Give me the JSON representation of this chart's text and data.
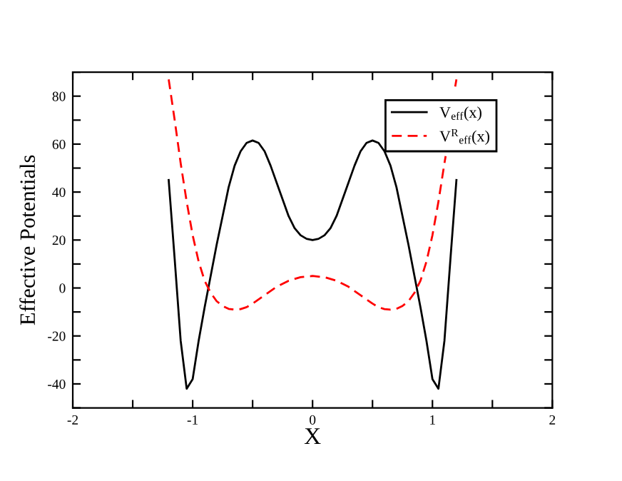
{
  "chart_data": {
    "type": "line",
    "xlabel": "X",
    "ylabel": "Effective Potentials",
    "xlim": [
      -2,
      2
    ],
    "ylim": [
      -50,
      90
    ],
    "xticks": [
      -2,
      {
        "value": -1.5,
        "label": null
      },
      -1,
      {
        "value": -0.5,
        "label": null
      },
      0,
      {
        "value": 0.5,
        "label": null
      },
      1,
      {
        "value": 1.5,
        "label": null
      },
      2
    ],
    "yticks": [
      {
        "value": -50,
        "label": null
      },
      -40,
      {
        "value": -30,
        "label": null
      },
      -20,
      {
        "value": -10,
        "label": null
      },
      0,
      {
        "value": 10,
        "label": null
      },
      20,
      {
        "value": 30,
        "label": null
      },
      40,
      {
        "value": 50,
        "label": null
      },
      60,
      {
        "value": 70,
        "label": null
      },
      80,
      {
        "value": 90,
        "label": null
      }
    ],
    "grid": false,
    "legend": "top right",
    "marker": "none",
    "series": [
      {
        "name": "V$_{eff}$(x)",
        "color": "#000000",
        "line_style": "solid",
        "x": [
          -1.2,
          -1.15,
          -1.1,
          -1.05,
          -1.0,
          -0.95,
          -0.9,
          -0.85,
          -0.8,
          -0.75,
          -0.7,
          -0.65,
          -0.6,
          -0.55,
          -0.5,
          -0.45,
          -0.4,
          -0.35,
          -0.3,
          -0.25,
          -0.2,
          -0.15,
          -0.1,
          -0.05,
          0,
          0.05,
          0.1,
          0.15,
          0.2,
          0.25,
          0.3,
          0.35,
          0.4,
          0.45,
          0.5,
          0.55,
          0.6,
          0.65,
          0.7,
          0.75,
          0.8,
          0.85,
          0.9,
          0.95,
          1.0,
          1.05,
          1.1,
          1.15,
          1.2
        ],
        "values": [
          45,
          12,
          -22,
          -42,
          -38,
          -22,
          -8,
          5,
          18,
          30,
          42,
          51,
          57,
          60.5,
          61.5,
          60.5,
          57,
          51,
          44,
          37,
          30,
          25,
          22,
          20.5,
          20,
          20.5,
          22,
          25,
          30,
          37,
          44,
          51,
          57,
          60.5,
          61.5,
          60.5,
          57,
          51,
          42,
          30,
          18,
          5,
          -8,
          -22,
          -38,
          -42,
          -22,
          12,
          45
        ]
      },
      {
        "name": "V$^{R}$$_{eff}$(x)",
        "color": "#ff0000",
        "line_style": "dashed",
        "x": [
          -1.2,
          -1.15,
          -1.1,
          -1.05,
          -1.0,
          -0.95,
          -0.9,
          -0.85,
          -0.8,
          -0.75,
          -0.7,
          -0.65,
          -0.6,
          -0.55,
          -0.5,
          -0.4,
          -0.3,
          -0.2,
          -0.1,
          0,
          0.1,
          0.2,
          0.3,
          0.4,
          0.5,
          0.55,
          0.6,
          0.65,
          0.7,
          0.75,
          0.8,
          0.85,
          0.9,
          0.95,
          1.0,
          1.05,
          1.1,
          1.11,
          1.15,
          1.19,
          1.2
        ],
        "values": [
          87,
          70,
          52,
          36,
          22,
          11,
          3,
          -2,
          -5.5,
          -7.5,
          -8.7,
          -9,
          -8.8,
          -8,
          -6.5,
          -3,
          0.5,
          3,
          4.5,
          5,
          4.5,
          3,
          0.5,
          -3,
          -6.5,
          -8,
          -8.8,
          -9,
          -8.7,
          -7.5,
          -5.5,
          -2,
          3,
          11,
          22,
          36,
          52,
          55,
          null,
          84,
          87
        ]
      }
    ]
  }
}
